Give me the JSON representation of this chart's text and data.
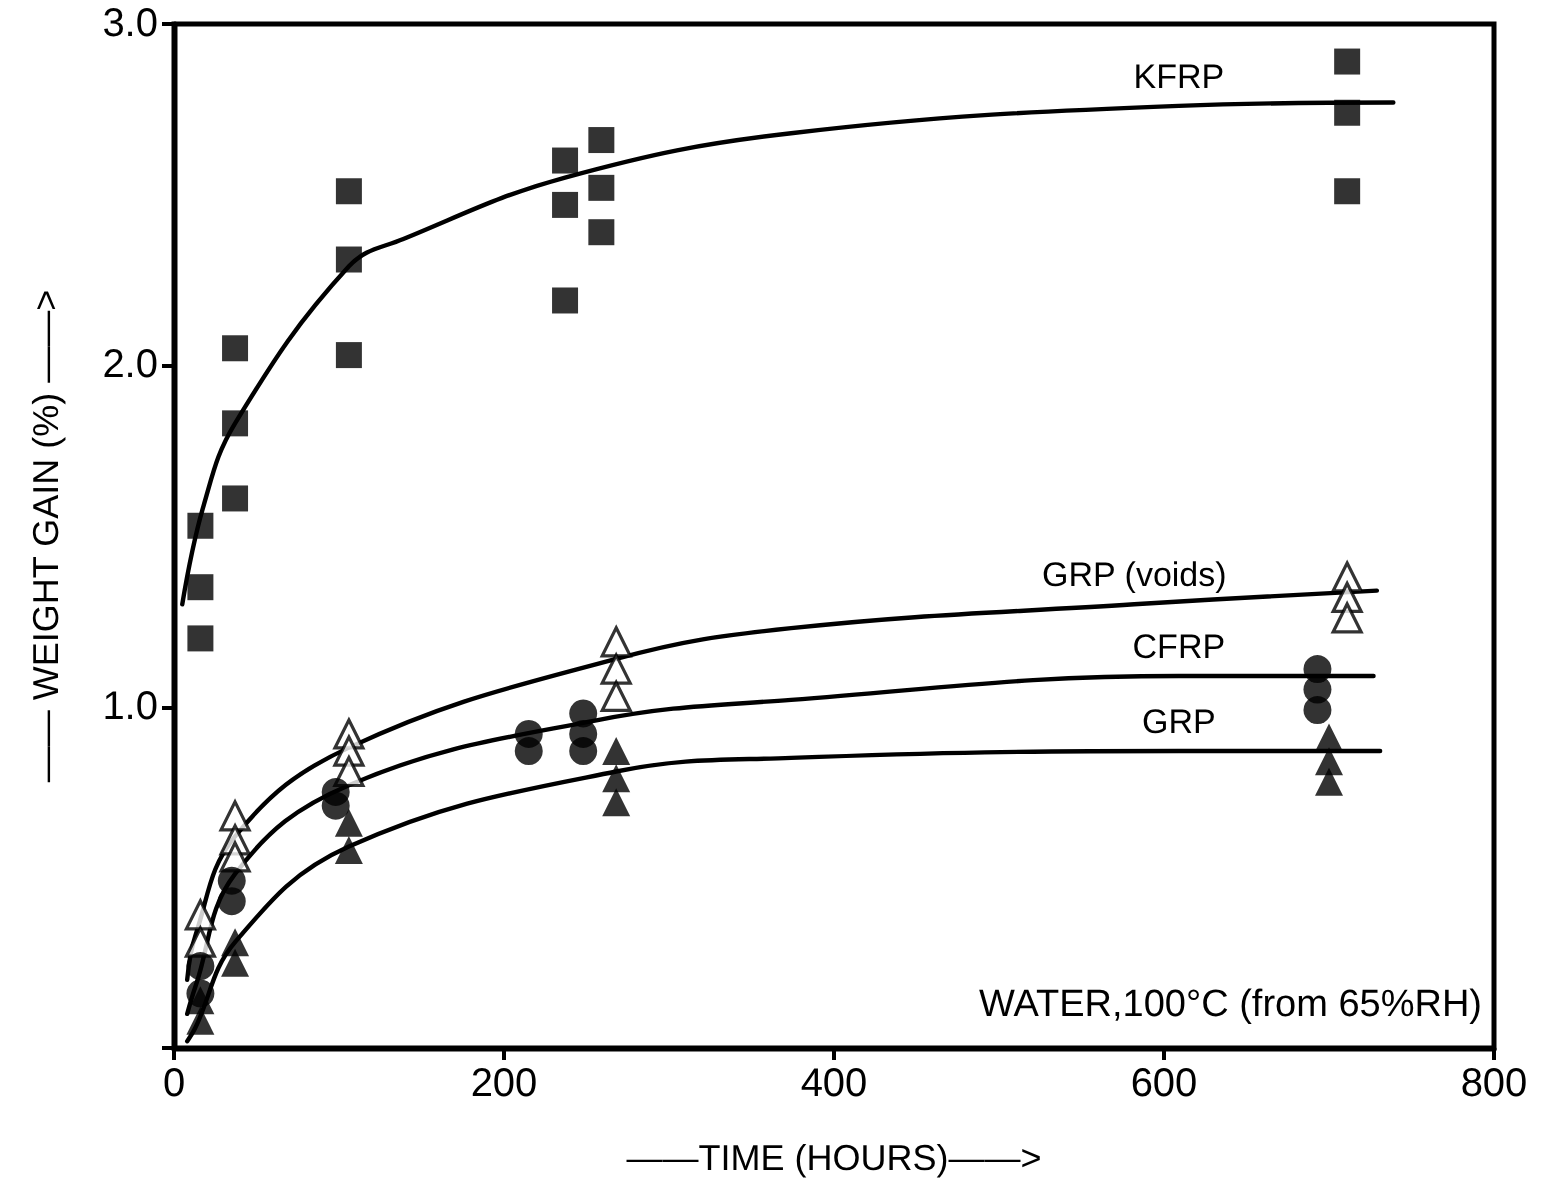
{
  "chart_data": {
    "type": "scatter",
    "xlabel": "——TIME (HOURS)——>",
    "ylabel": "—— WEIGHT GAIN (%) ——>",
    "xlim": [
      0,
      800
    ],
    "xticks": [
      0,
      200,
      400,
      600,
      800
    ],
    "ylim": [
      0,
      3
    ],
    "yticks": [
      {
        "value": 0,
        "label": null
      },
      {
        "value": 1,
        "label": "1.0"
      },
      {
        "value": 2,
        "label": "2.0"
      },
      {
        "value": 3,
        "label": "3.0"
      }
    ],
    "grid": false,
    "legend": false,
    "annotations": [
      "WATER,100°C (from 65%RH)"
    ],
    "series": [
      {
        "type": "line",
        "name": "KFRP",
        "color": "#000000",
        "marker": "none",
        "x": [
          5,
          18,
          37,
          106,
          139,
          237,
          374,
          609,
          739
        ],
        "values": [
          1.3,
          1.59,
          1.83,
          2.29,
          2.37,
          2.55,
          2.68,
          2.76,
          2.77
        ]
      },
      {
        "type": "line",
        "name": "GRP (voids)",
        "color": "#000000",
        "marker": "none",
        "x": [
          8,
          13,
          37,
          106,
          268,
          374,
          582,
          729
        ],
        "values": [
          0.2,
          0.33,
          0.62,
          0.88,
          1.14,
          1.23,
          1.3,
          1.34
        ]
      },
      {
        "type": "line",
        "name": "CFRP",
        "color": "#000000",
        "marker": "none",
        "x": [
          8,
          13,
          37,
          106,
          256,
          374,
          609,
          727
        ],
        "values": [
          0.1,
          0.18,
          0.51,
          0.77,
          0.96,
          1.02,
          1.09,
          1.09
        ]
      },
      {
        "type": "line",
        "name": "GRP",
        "color": "#000000",
        "marker": "none",
        "x": [
          8,
          13,
          37,
          106,
          268,
          374,
          609,
          731
        ],
        "values": [
          0.02,
          0.06,
          0.31,
          0.59,
          0.81,
          0.85,
          0.87,
          0.87
        ]
      },
      {
        "color": "#000000",
        "marker": "square",
        "x": [
          16,
          16,
          16,
          37,
          37,
          37,
          106,
          106,
          106,
          237,
          237,
          237,
          259,
          259,
          259,
          711,
          711,
          711
        ],
        "values": [
          1.53,
          1.35,
          1.2,
          2.05,
          1.83,
          1.61,
          2.51,
          2.31,
          2.03,
          2.6,
          2.47,
          2.19,
          2.66,
          2.52,
          2.39,
          2.89,
          2.74,
          2.51
        ]
      },
      {
        "color": "#ffffff",
        "marker": "triangle",
        "x": [
          16,
          16,
          37,
          37,
          37,
          106,
          106,
          106,
          268,
          268,
          268,
          711,
          711,
          711
        ],
        "values": [
          0.39,
          0.31,
          0.68,
          0.61,
          0.56,
          0.92,
          0.87,
          0.81,
          1.19,
          1.11,
          1.03,
          1.38,
          1.32,
          1.26
        ]
      },
      {
        "color": "#000000",
        "marker": "circle",
        "x": [
          16,
          16,
          35,
          35,
          98,
          98,
          215,
          215,
          248,
          248,
          248,
          693,
          693,
          693
        ],
        "values": [
          0.24,
          0.16,
          0.49,
          0.43,
          0.75,
          0.71,
          0.92,
          0.87,
          0.98,
          0.92,
          0.87,
          1.11,
          1.05,
          0.99
        ]
      },
      {
        "color": "#000000",
        "marker": "triangle",
        "x": [
          16,
          16,
          37,
          37,
          106,
          106,
          268,
          268,
          268,
          700,
          700,
          700
        ],
        "values": [
          0.14,
          0.08,
          0.31,
          0.25,
          0.66,
          0.58,
          0.87,
          0.79,
          0.72,
          0.91,
          0.84,
          0.78
        ]
      }
    ]
  }
}
